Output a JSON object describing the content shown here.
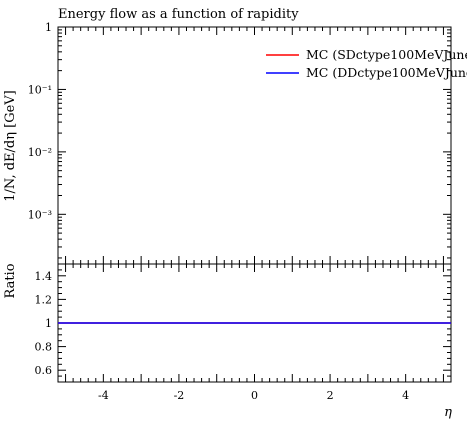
{
  "chart_data": [
    {
      "type": "line",
      "title": "Energy flow as a function of rapidity",
      "ylabel": "1/N, dE/dη [GeV]",
      "xlabel": "",
      "yscale": "log",
      "xlim": [
        -5.2,
        5.2
      ],
      "ylim": [
        0.00016,
        1.0
      ],
      "y_ticks": [
        {
          "value": 1,
          "label": "1"
        },
        {
          "value": 0.1,
          "label": "10⁻¹"
        },
        {
          "value": 0.01,
          "label": "10⁻²"
        },
        {
          "value": 0.001,
          "label": "10⁻³"
        }
      ],
      "legend_position": "top-right",
      "series": [
        {
          "name": "MC (SDctype100MeVJune",
          "color": "#ff0000",
          "x": [],
          "y": []
        },
        {
          "name": "MC (DDctype100MeVJune",
          "color": "#0000ff",
          "x": [],
          "y": []
        }
      ]
    },
    {
      "type": "line",
      "title": "",
      "ylabel": "Ratio",
      "xlabel": "η",
      "xlim": [
        -5.2,
        5.2
      ],
      "ylim": [
        0.5,
        1.5
      ],
      "x_ticks": [
        {
          "value": -4,
          "label": "-4"
        },
        {
          "value": -2,
          "label": "-2"
        },
        {
          "value": 0,
          "label": "0"
        },
        {
          "value": 2,
          "label": "2"
        },
        {
          "value": 4,
          "label": "4"
        }
      ],
      "y_ticks": [
        {
          "value": 0.6,
          "label": "0.6"
        },
        {
          "value": 0.8,
          "label": "0.8"
        },
        {
          "value": 1.0,
          "label": "1"
        },
        {
          "value": 1.2,
          "label": "1.2"
        },
        {
          "value": 1.4,
          "label": "1.4"
        }
      ],
      "series": [
        {
          "name": "MC (SDctype100MeVJune",
          "color": "#ff0000",
          "x": [
            -5.2,
            5.2
          ],
          "y": [
            1,
            1
          ]
        },
        {
          "name": "MC (DDctype100MeVJune",
          "color": "#0000ff",
          "x": [
            -5.2,
            5.2
          ],
          "y": [
            1,
            1
          ]
        }
      ]
    }
  ]
}
